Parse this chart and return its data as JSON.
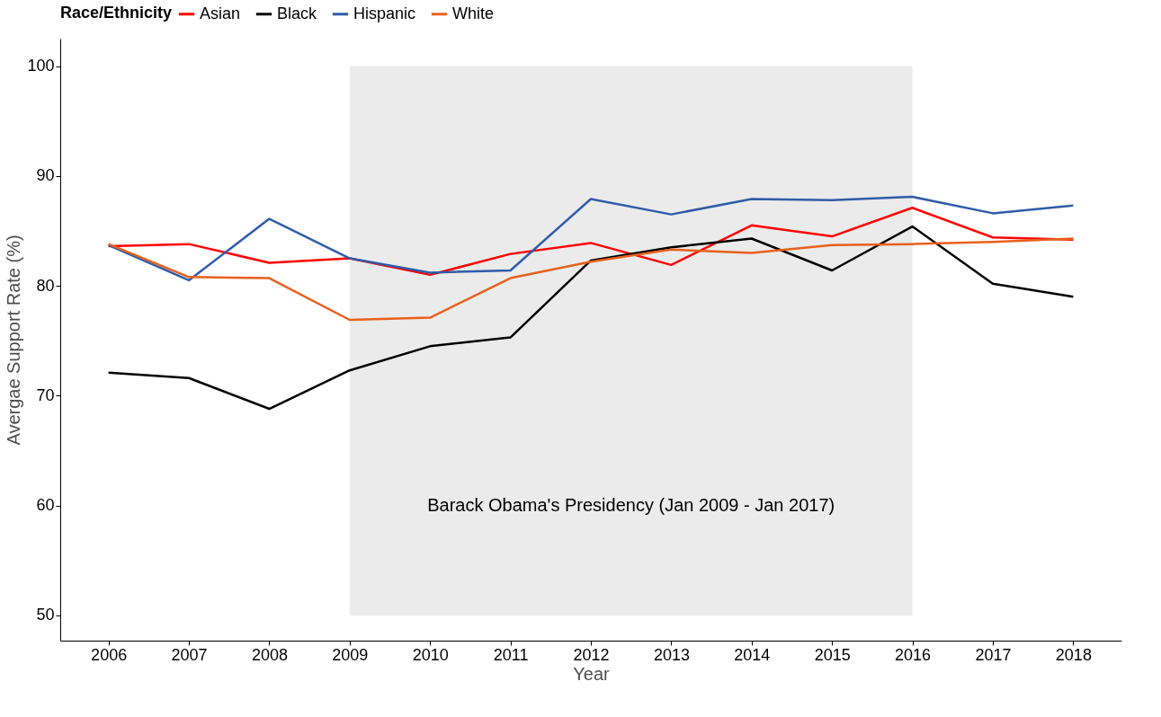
{
  "chart_data": {
    "type": "line",
    "xlabel": "Year",
    "ylabel": "Avergae Support Rate (%)",
    "legend_title": "Race/Ethnicity",
    "legend": "top",
    "x": [
      2006,
      2007,
      2008,
      2009,
      2010,
      2011,
      2012,
      2013,
      2014,
      2015,
      2016,
      2017,
      2018
    ],
    "series": [
      {
        "name": "Asian",
        "color": "#ff0000",
        "values": [
          83.6,
          83.8,
          82.1,
          82.5,
          81.0,
          82.9,
          83.9,
          81.9,
          85.5,
          84.5,
          87.1,
          84.4,
          84.2
        ]
      },
      {
        "name": "Black",
        "color": "#000000",
        "values": [
          72.1,
          71.6,
          68.8,
          72.3,
          74.5,
          75.3,
          82.3,
          83.5,
          84.3,
          81.4,
          85.4,
          80.2,
          79.0
        ]
      },
      {
        "name": "Hispanic",
        "color": "#2f5ca8",
        "values": [
          83.7,
          80.5,
          86.1,
          82.5,
          81.2,
          81.4,
          87.9,
          86.5,
          87.9,
          87.8,
          88.1,
          86.6,
          87.3
        ]
      },
      {
        "name": "White",
        "color": "#e8601c",
        "values": [
          83.8,
          80.8,
          80.7,
          76.9,
          77.1,
          80.7,
          82.2,
          83.3,
          83.0,
          83.7,
          83.8,
          84.0,
          84.3
        ]
      }
    ],
    "xlim": [
      2005.4,
      2018.6
    ],
    "xticks": [
      2006,
      2007,
      2008,
      2009,
      2010,
      2011,
      2012,
      2013,
      2014,
      2015,
      2016,
      2017,
      2018
    ],
    "ylim": [
      47.7,
      102.5
    ],
    "yticks": [
      50,
      60,
      70,
      80,
      90,
      100
    ],
    "bands": [
      {
        "axis": "x",
        "from": 2009,
        "to": 2016,
        "color": "#ebebeb",
        "label": "Barack Obama's Presidency (Jan 2009 - Jan 2017)"
      }
    ],
    "grid": false,
    "line_style": "solid"
  }
}
